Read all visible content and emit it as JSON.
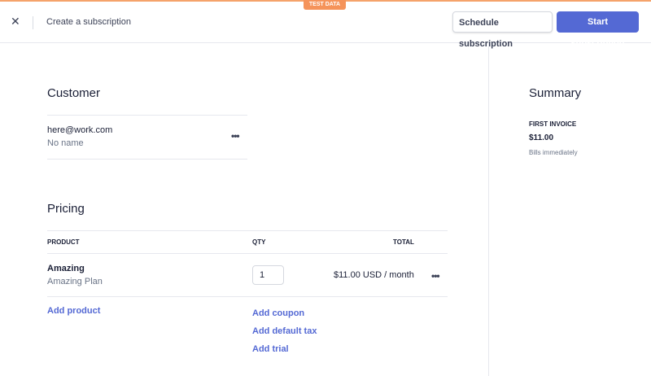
{
  "banner": {
    "label": "TEST DATA",
    "color": "#f5935a"
  },
  "header": {
    "title": "Create a subscription",
    "close_icon": "close-icon",
    "schedule_label": "Schedule subscription",
    "start_label": "Start subscription",
    "accent": "#5469d4"
  },
  "customer": {
    "heading": "Customer",
    "email": "here@work.com",
    "name": "No name"
  },
  "pricing": {
    "heading": "Pricing",
    "columns": [
      "PRODUCT",
      "QTY",
      "TOTAL"
    ],
    "rows": [
      {
        "product": "Amazing",
        "plan": "Amazing Plan",
        "qty": "1",
        "total": "$11.00 USD / month"
      }
    ],
    "add_product": "Add product",
    "add_coupon": "Add coupon",
    "add_default_tax": "Add default tax",
    "add_trial": "Add trial"
  },
  "summary": {
    "heading": "Summary",
    "first_invoice_label": "FIRST INVOICE",
    "amount": "$11.00",
    "note": "Bills immediately"
  }
}
